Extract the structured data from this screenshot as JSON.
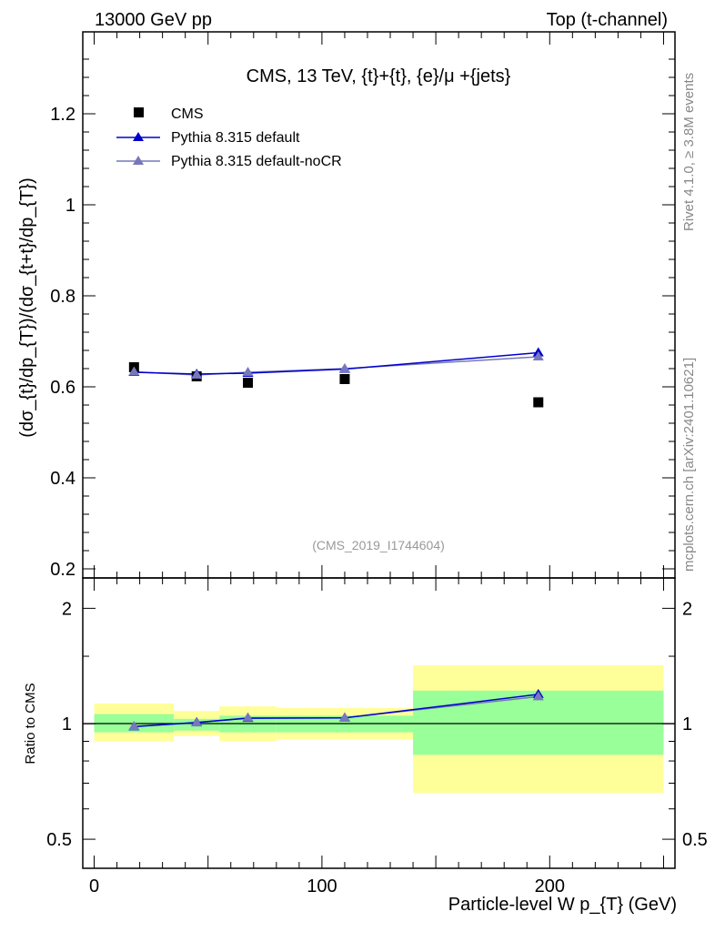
{
  "header": {
    "left": "13000 GeV pp",
    "right": "Top (t-channel)"
  },
  "side_labels": {
    "rivet": "Rivet 4.1.0, ≥ 3.8M events",
    "mcplots": "mcplots.cern.ch [arXiv:2401.10621]"
  },
  "colors": {
    "data": "#000000",
    "default": "#0000cc",
    "nocr": "#7777bb",
    "band_inner": "#99ff99",
    "band_outer": "#ffff99"
  },
  "chart_data": [
    {
      "type": "scatter",
      "title": "CMS, 13 TeV, {t}+{t}, {e}/μ +{jets}",
      "analysis_tag": "(CMS_2019_I1744604)",
      "xlabel": "Particle-level W p_{T} (GeV)",
      "ylabel": "(dσ_{t}/dp_{T})/(dσ_{t+t}/dp_{T})",
      "xlim": [
        -5,
        255
      ],
      "ylim": [
        0.18,
        1.38
      ],
      "yticks": [
        0.2,
        0.4,
        0.6,
        0.8,
        1.0,
        1.2
      ],
      "ytick_labels": [
        "0.2",
        "0.4",
        "0.6",
        "0.8",
        "1",
        "1.2"
      ],
      "legend": [
        "CMS",
        "Pythia 8.315 default",
        "Pythia 8.315 default-noCR"
      ],
      "legend_position": "top-left",
      "bin_edges": [
        0,
        35,
        55,
        80,
        140,
        250
      ],
      "x": [
        17.5,
        45,
        67.5,
        110,
        195
      ],
      "series": [
        {
          "name": "CMS",
          "values": [
            0.643,
            0.623,
            0.609,
            0.617,
            0.566
          ]
        },
        {
          "name": "Pythia 8.315 default",
          "values": [
            0.632,
            0.628,
            0.63,
            0.639,
            0.675
          ]
        },
        {
          "name": "Pythia 8.315 default-noCR",
          "values": [
            0.633,
            0.626,
            0.632,
            0.64,
            0.666
          ]
        }
      ]
    },
    {
      "type": "line",
      "ylabel": "Ratio to CMS",
      "yscale": "log",
      "ylim": [
        0.42,
        2.4
      ],
      "yticks": [
        0.5,
        1,
        2
      ],
      "ytick_labels": [
        "0.5",
        "1",
        "2"
      ],
      "xticks": [
        0,
        100,
        200
      ],
      "xtick_labels": [
        "0",
        "100",
        "200"
      ],
      "bin_edges": [
        0,
        35,
        55,
        80,
        140,
        250
      ],
      "x": [
        17.5,
        45,
        67.5,
        110,
        195
      ],
      "band_inner": [
        [
          0.95,
          1.06
        ],
        [
          0.96,
          1.03
        ],
        [
          0.95,
          1.05
        ],
        [
          0.95,
          1.05
        ],
        [
          0.83,
          1.22
        ]
      ],
      "band_outer": [
        [
          0.9,
          1.13
        ],
        [
          0.93,
          1.08
        ],
        [
          0.9,
          1.11
        ],
        [
          0.91,
          1.1
        ],
        [
          0.66,
          1.42
        ]
      ],
      "series": [
        {
          "name": "Pythia 8.315 default",
          "values": [
            0.983,
            1.008,
            1.034,
            1.036,
            1.193
          ]
        },
        {
          "name": "Pythia 8.315 default-noCR",
          "values": [
            0.985,
            1.006,
            1.037,
            1.037,
            1.177
          ]
        }
      ]
    }
  ]
}
